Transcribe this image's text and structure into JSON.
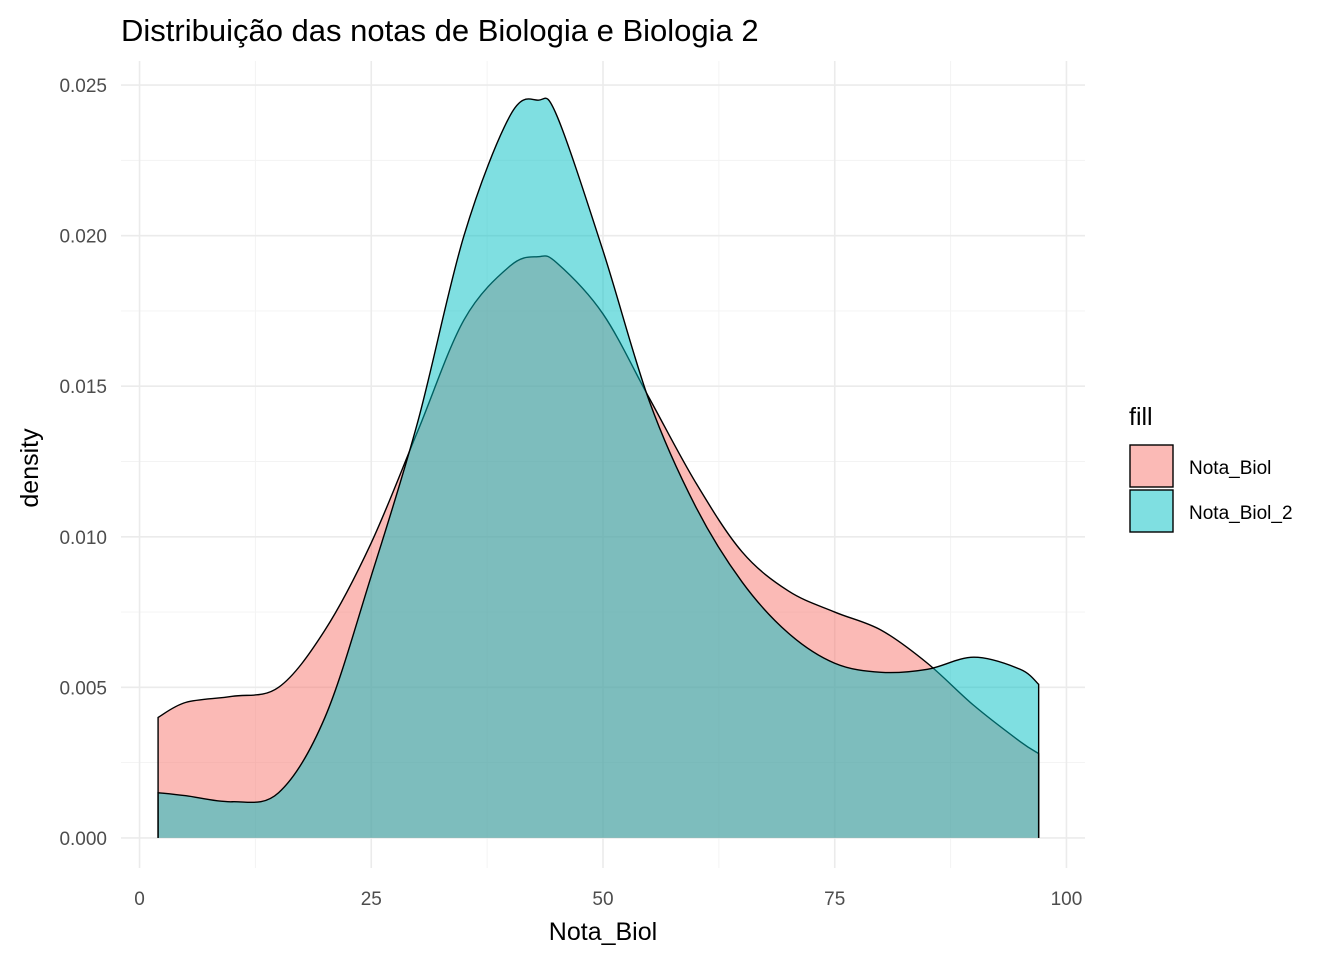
{
  "chart_data": {
    "type": "area",
    "subtype": "density",
    "title": "Distribuição das notas de Biologia e Biologia 2",
    "xlabel": "Nota_Biol",
    "ylabel": "density",
    "xlim": [
      -2,
      102
    ],
    "ylim": [
      -0.001,
      0.0258
    ],
    "x_ticks": [
      0,
      25,
      50,
      75,
      100
    ],
    "x_tick_labels": [
      "0",
      "25",
      "50",
      "75",
      "100"
    ],
    "y_ticks": [
      0,
      0.005,
      0.01,
      0.015,
      0.02,
      0.025
    ],
    "y_tick_labels": [
      "0.000",
      "0.005",
      "0.010",
      "0.015",
      "0.020",
      "0.025"
    ],
    "grid": true,
    "legend": {
      "title": "fill",
      "position": "right",
      "entries": [
        "Nota_Biol",
        "Nota_Biol_2"
      ]
    },
    "series": [
      {
        "name": "Nota_Biol",
        "color": "#F8766D",
        "x": [
          2,
          5,
          10,
          15,
          20,
          25,
          30,
          35,
          40,
          43,
          45,
          50,
          55,
          60,
          65,
          70,
          75,
          80,
          85,
          90,
          95,
          97
        ],
        "y": [
          0.004,
          0.0045,
          0.0047,
          0.005,
          0.0069,
          0.0098,
          0.0135,
          0.0172,
          0.019,
          0.0193,
          0.0191,
          0.0174,
          0.0146,
          0.0118,
          0.0095,
          0.0082,
          0.0075,
          0.0069,
          0.0058,
          0.0044,
          0.0032,
          0.0028
        ]
      },
      {
        "name": "Nota_Biol_2",
        "color": "#00BFC4",
        "x": [
          2,
          5,
          10,
          15,
          20,
          25,
          30,
          35,
          40,
          43,
          45,
          50,
          55,
          60,
          65,
          70,
          75,
          80,
          85,
          90,
          95,
          97
        ],
        "y": [
          0.0015,
          0.0014,
          0.0012,
          0.0015,
          0.004,
          0.0087,
          0.0138,
          0.02,
          0.024,
          0.0245,
          0.024,
          0.0195,
          0.0145,
          0.011,
          0.0085,
          0.0068,
          0.0058,
          0.0055,
          0.0056,
          0.006,
          0.0056,
          0.0051
        ]
      }
    ]
  }
}
